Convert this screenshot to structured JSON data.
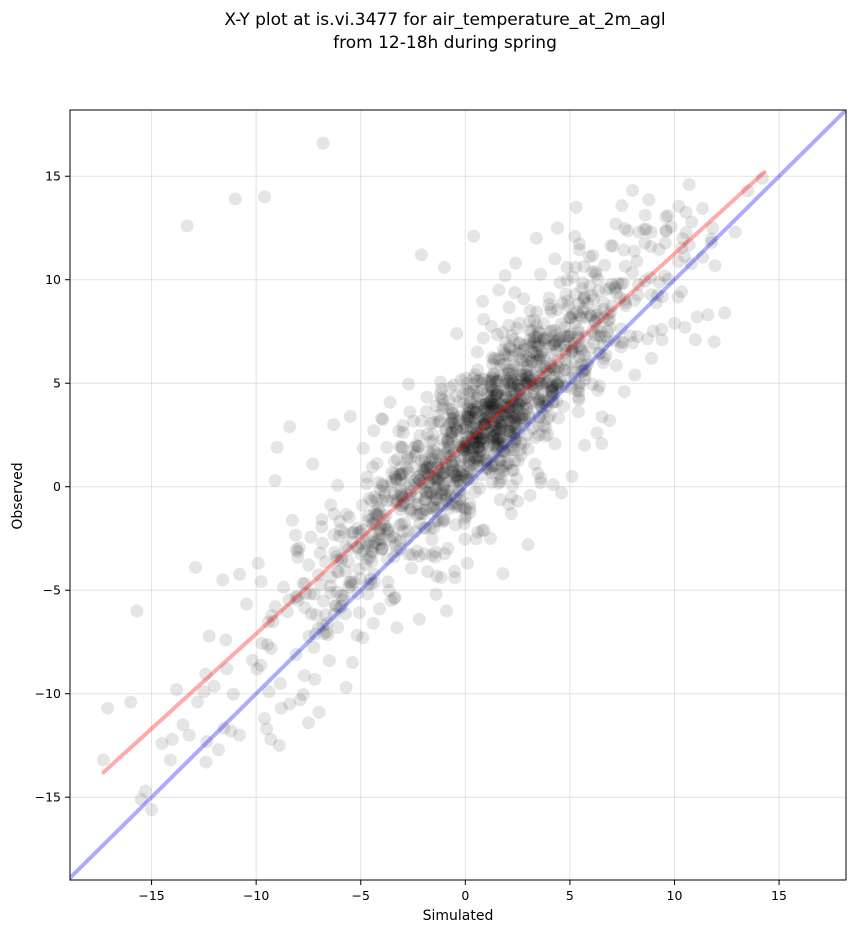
{
  "chart_data": {
    "type": "scatter",
    "title_line1": "X-Y plot at is.vi.3477 for air_temperature_at_2m_agl",
    "title_line2": "from 12-18h during spring",
    "xlabel": "Simulated",
    "ylabel": "Observed",
    "xlim": [
      -18.9,
      18.2
    ],
    "ylim": [
      -19.0,
      18.2
    ],
    "xticks": [
      -15,
      -10,
      -5,
      0,
      5,
      10,
      15
    ],
    "yticks": [
      -15,
      -10,
      -5,
      0,
      5,
      10,
      15
    ],
    "xtick_labels": [
      "−15",
      "−10",
      "−5",
      "0",
      "5",
      "10",
      "15"
    ],
    "ytick_labels": [
      "−15",
      "−10",
      "−5",
      "0",
      "5",
      "10",
      "15"
    ],
    "grid": true,
    "point_color": "#000000",
    "point_alpha": 0.1,
    "reference_line": {
      "description": "1:1",
      "x": [
        -19.0,
        18.2
      ],
      "y": [
        -19.0,
        18.2
      ],
      "color": "#0000ff",
      "alpha": 0.33
    },
    "regression_line": {
      "x": [
        -17.3,
        14.3
      ],
      "y": [
        -13.8,
        15.2
      ],
      "color": "#ff0000",
      "alpha": 0.33
    },
    "outlier_points": {
      "x": [
        -17.3,
        -17.1,
        -16.0,
        -15.7,
        -15.5,
        -15.3,
        -15.0,
        -14.5,
        -14.1,
        -13.5,
        -13.8,
        -13.2,
        -12.8,
        -12.4,
        -11.8,
        -11.2,
        -10.8,
        -9.6,
        -8.9,
        -9.3,
        -9.5,
        -8.8,
        -8.4,
        -7.9,
        -7.5,
        -7.2,
        -7.0,
        -6.5,
        -6.1,
        -5.7,
        -5.4,
        -4.9,
        -4.4,
        -4.1,
        -3.7,
        -3.4,
        -3.1,
        -2.2,
        -1.8,
        -1.4,
        -0.9,
        -0.5,
        0.1,
        0.6,
        1.2,
        1.8,
        2.2,
        2.5,
        3.0,
        3.6,
        4.2,
        4.6,
        5.1,
        5.7,
        6.3,
        6.9,
        7.6,
        8.1,
        8.9,
        9.4,
        10.0,
        10.5,
        11.0,
        11.6,
        11.9,
        12.4,
        12.9,
        13.5,
        14.2,
        -12.9,
        -9.9,
        -11.6,
        -9.0,
        -8.4,
        -9.1,
        -7.3,
        -5.5,
        -4.0,
        -6.3,
        -2.1,
        -1.0,
        1.9,
        0.4,
        1.6,
        2.4,
        3.4,
        4.4,
        5.3,
        7.2,
        8.3,
        9.6,
        10.7,
        -6.8,
        -9.6,
        -11.0,
        -13.3
      ],
      "y": [
        -13.2,
        -10.7,
        -10.4,
        -6.0,
        -15.1,
        -14.7,
        -15.6,
        -12.4,
        -13.2,
        -11.5,
        -9.8,
        -12.0,
        -10.4,
        -13.3,
        -12.7,
        -11.8,
        -12.0,
        -11.2,
        -12.5,
        -12.2,
        -11.7,
        -10.7,
        -10.5,
        -10.3,
        -11.4,
        -9.3,
        -10.9,
        -8.4,
        -6.8,
        -9.7,
        -8.5,
        -7.3,
        -6.6,
        -5.9,
        -4.6,
        -5.4,
        -3.0,
        -6.4,
        -4.1,
        -5.2,
        -6.0,
        -4.4,
        -3.7,
        -2.2,
        -2.5,
        -4.2,
        -1.3,
        -0.7,
        -2.8,
        0.2,
        0.1,
        -0.3,
        0.5,
        2.0,
        2.6,
        3.2,
        4.6,
        5.4,
        6.2,
        7.1,
        7.9,
        7.7,
        7.1,
        8.3,
        7.0,
        8.4,
        12.3,
        14.3,
        14.9,
        -3.9,
        -3.7,
        -4.5,
        1.9,
        2.9,
        0.3,
        1.1,
        3.4,
        3.3,
        3.0,
        11.2,
        10.6,
        10.2,
        12.1,
        9.5,
        10.8,
        12.0,
        12.5,
        13.5,
        12.7,
        12.3,
        12.4,
        14.6,
        16.6,
        14.0,
        13.9,
        12.6
      ]
    },
    "dense_cloud": {
      "point_count": 1350,
      "x_range": [
        -15.0,
        12.0
      ],
      "relation": "y ≈ 0.92x + 2.1",
      "y_spread_std": 1.9,
      "densest_x": [
        -3,
        3
      ]
    }
  }
}
